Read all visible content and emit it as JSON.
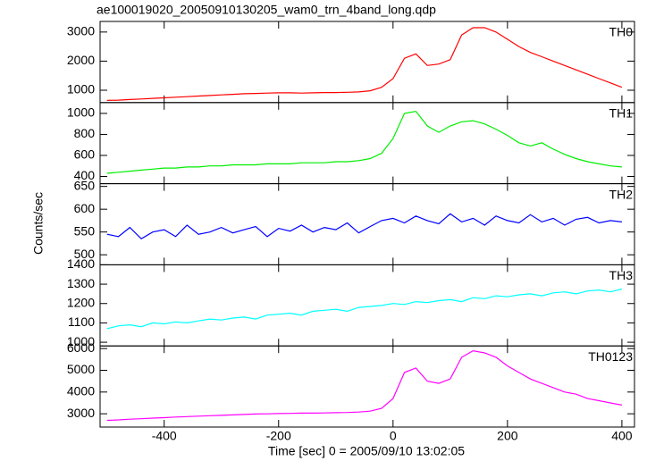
{
  "figure": {
    "title": "ae100019020_20050910130205_wam0_trn_4band_long.qdp",
    "ylabel": "Counts/sec",
    "xlabel": "Time [sec] 0 = 2005/09/10 13:02:05",
    "xlim": [
      -512,
      422
    ],
    "xticks": [
      -400,
      -200,
      0,
      200,
      400
    ]
  },
  "chart_data": [
    {
      "type": "line",
      "label": "TH0",
      "color": "#ff0000",
      "ylim": [
        576,
        3364
      ],
      "yticks": [
        1000,
        2000,
        3000
      ],
      "x": [
        -500,
        -480,
        -460,
        -440,
        -420,
        -400,
        -380,
        -360,
        -340,
        -320,
        -300,
        -280,
        -260,
        -240,
        -220,
        -200,
        -180,
        -160,
        -140,
        -120,
        -100,
        -80,
        -60,
        -40,
        -20,
        0,
        20,
        40,
        60,
        80,
        100,
        120,
        140,
        160,
        180,
        200,
        220,
        240,
        260,
        280,
        300,
        320,
        340,
        360,
        380,
        400
      ],
      "values": [
        650,
        660,
        680,
        700,
        720,
        740,
        760,
        780,
        800,
        820,
        840,
        860,
        880,
        890,
        900,
        910,
        910,
        900,
        910,
        920,
        920,
        930,
        940,
        980,
        1100,
        1400,
        2100,
        2250,
        1850,
        1900,
        2050,
        2900,
        3150,
        3150,
        3000,
        2750,
        2500,
        2300,
        2150,
        2000,
        1850,
        1700,
        1550,
        1400,
        1250,
        1100
      ]
    },
    {
      "type": "line",
      "label": "TH1",
      "color": "#00ee00",
      "ylim": [
        331,
        1103
      ],
      "yticks": [
        400,
        600,
        800,
        1000
      ],
      "x": [
        -500,
        -480,
        -460,
        -440,
        -420,
        -400,
        -380,
        -360,
        -340,
        -320,
        -300,
        -280,
        -260,
        -240,
        -220,
        -200,
        -180,
        -160,
        -140,
        -120,
        -100,
        -80,
        -60,
        -40,
        -20,
        0,
        20,
        40,
        60,
        80,
        100,
        120,
        140,
        160,
        180,
        200,
        220,
        240,
        260,
        280,
        300,
        320,
        340,
        360,
        380,
        400
      ],
      "values": [
        430,
        440,
        450,
        460,
        470,
        480,
        480,
        490,
        490,
        500,
        500,
        510,
        510,
        510,
        520,
        520,
        520,
        530,
        530,
        530,
        540,
        540,
        550,
        570,
        620,
        760,
        1000,
        1020,
        880,
        820,
        880,
        920,
        930,
        900,
        850,
        790,
        720,
        690,
        720,
        660,
        610,
        570,
        540,
        520,
        500,
        490
      ]
    },
    {
      "type": "line",
      "label": "TH2",
      "color": "#0000ff",
      "ylim": [
        478,
        656
      ],
      "yticks": [
        500,
        550,
        600,
        650
      ],
      "x": [
        -500,
        -480,
        -460,
        -440,
        -420,
        -400,
        -380,
        -360,
        -340,
        -320,
        -300,
        -280,
        -260,
        -240,
        -220,
        -200,
        -180,
        -160,
        -140,
        -120,
        -100,
        -80,
        -60,
        -40,
        -20,
        0,
        20,
        40,
        60,
        80,
        100,
        120,
        140,
        160,
        180,
        200,
        220,
        240,
        260,
        280,
        300,
        320,
        340,
        360,
        380,
        400
      ],
      "values": [
        545,
        540,
        560,
        535,
        550,
        555,
        540,
        565,
        545,
        550,
        560,
        548,
        555,
        562,
        540,
        558,
        552,
        565,
        550,
        560,
        555,
        570,
        548,
        562,
        575,
        580,
        570,
        585,
        575,
        568,
        590,
        572,
        580,
        565,
        585,
        575,
        570,
        588,
        572,
        580,
        565,
        578,
        582,
        570,
        575,
        572
      ]
    },
    {
      "type": "line",
      "label": "TH3",
      "color": "#00ffff",
      "ylim": [
        981,
        1400
      ],
      "yticks": [
        1000,
        1100,
        1200,
        1300,
        1400
      ],
      "x": [
        -500,
        -480,
        -460,
        -440,
        -420,
        -400,
        -380,
        -360,
        -340,
        -320,
        -300,
        -280,
        -260,
        -240,
        -220,
        -200,
        -180,
        -160,
        -140,
        -120,
        -100,
        -80,
        -60,
        -40,
        -20,
        0,
        20,
        40,
        60,
        80,
        100,
        120,
        140,
        160,
        180,
        200,
        220,
        240,
        260,
        280,
        300,
        320,
        340,
        360,
        380,
        400
      ],
      "values": [
        1070,
        1085,
        1090,
        1080,
        1100,
        1095,
        1105,
        1100,
        1110,
        1120,
        1115,
        1125,
        1130,
        1120,
        1140,
        1145,
        1150,
        1140,
        1160,
        1165,
        1170,
        1160,
        1180,
        1185,
        1190,
        1200,
        1195,
        1210,
        1205,
        1215,
        1220,
        1210,
        1230,
        1225,
        1240,
        1235,
        1245,
        1250,
        1240,
        1255,
        1260,
        1250,
        1265,
        1270,
        1260,
        1275
      ]
    },
    {
      "type": "line",
      "label": "TH0123",
      "color": "#ff00ff",
      "ylim": [
        2390,
        6120
      ],
      "yticks": [
        3000,
        4000,
        5000,
        6000
      ],
      "x": [
        -500,
        -480,
        -460,
        -440,
        -420,
        -400,
        -380,
        -360,
        -340,
        -320,
        -300,
        -280,
        -260,
        -240,
        -220,
        -200,
        -180,
        -160,
        -140,
        -120,
        -100,
        -80,
        -60,
        -40,
        -20,
        0,
        20,
        40,
        60,
        80,
        100,
        120,
        140,
        160,
        180,
        200,
        220,
        240,
        260,
        280,
        300,
        320,
        340,
        360,
        380,
        400
      ],
      "values": [
        2700,
        2720,
        2750,
        2770,
        2800,
        2820,
        2850,
        2870,
        2890,
        2910,
        2930,
        2950,
        2970,
        2990,
        3000,
        3010,
        3020,
        3030,
        3030,
        3040,
        3050,
        3060,
        3080,
        3120,
        3250,
        3700,
        4900,
        5100,
        4500,
        4400,
        4600,
        5600,
        5900,
        5800,
        5600,
        5200,
        4900,
        4600,
        4400,
        4200,
        4000,
        3900,
        3700,
        3600,
        3500,
        3400
      ]
    }
  ]
}
